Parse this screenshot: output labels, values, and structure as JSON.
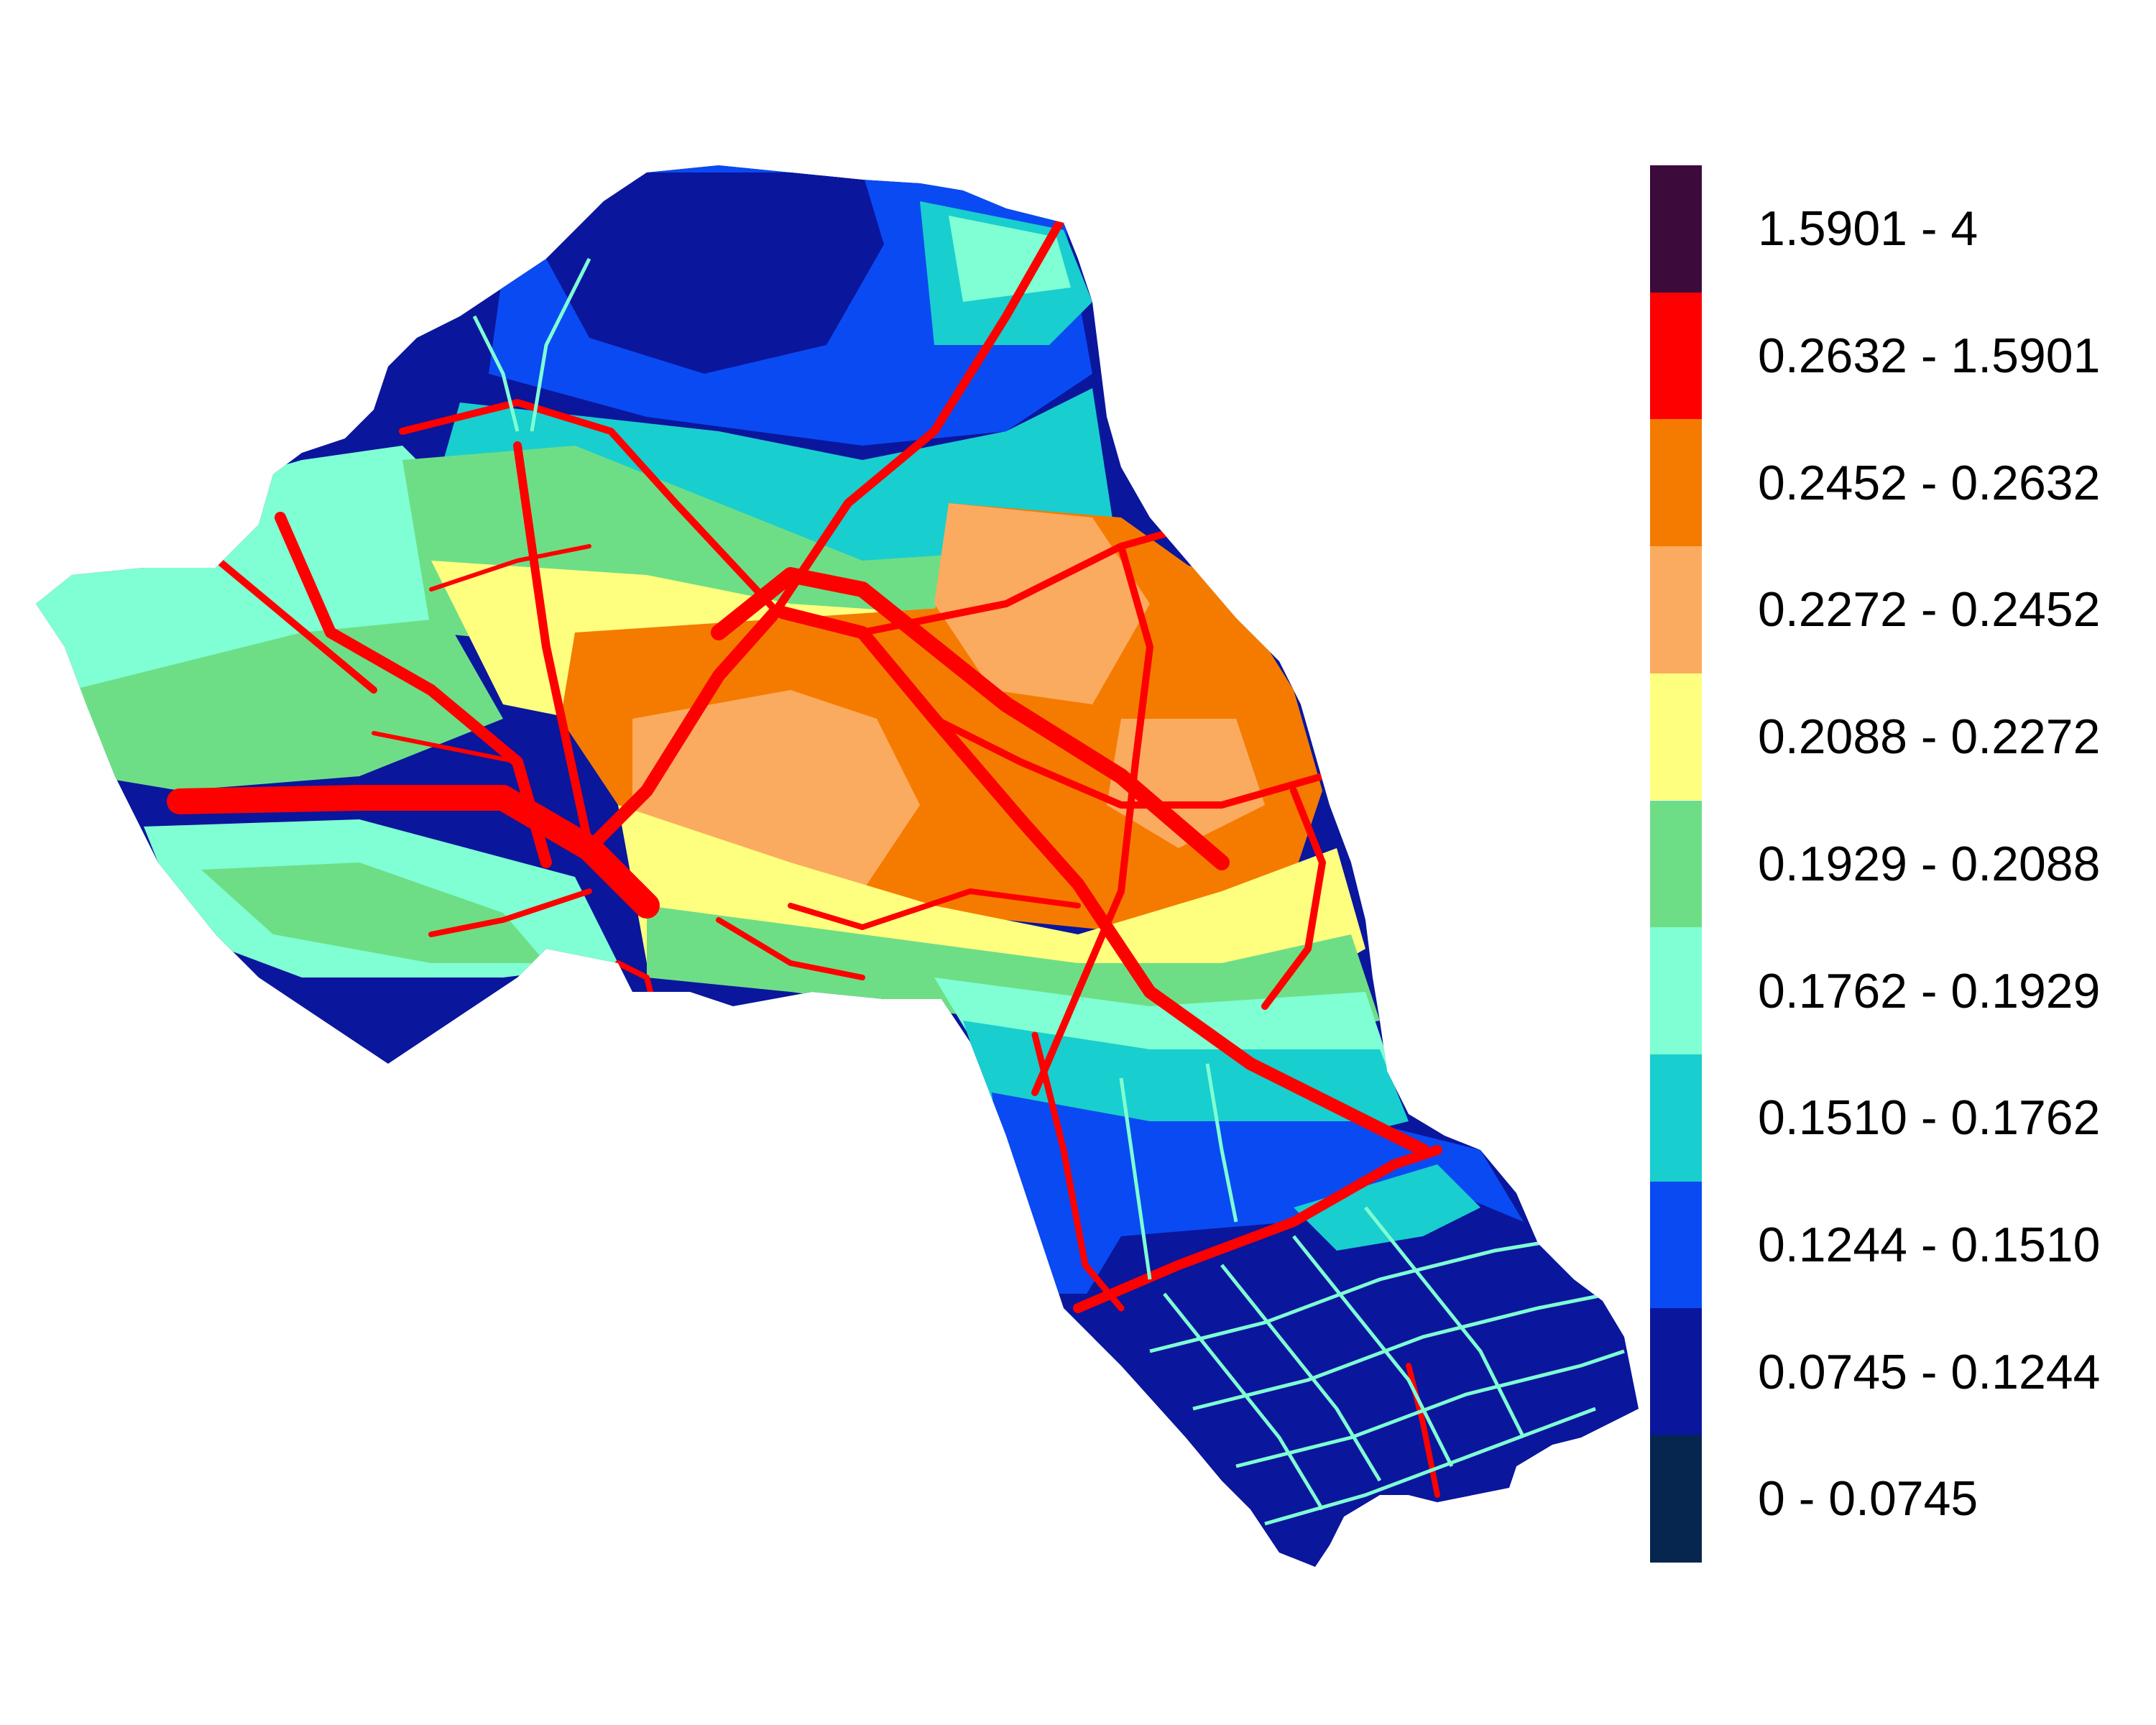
{
  "map": {
    "classes": [
      {
        "label": "1.5901 - 4",
        "color": "#3d0a3c"
      },
      {
        "label": "0.2632 - 1.5901",
        "color": "#ff0000"
      },
      {
        "label": "0.2452 - 0.2632",
        "color": "#f57b00"
      },
      {
        "label": "0.2272 - 0.2452",
        "color": "#fbab5f"
      },
      {
        "label": "0.2088 - 0.2272",
        "color": "#ffff7f"
      },
      {
        "label": "0.1929 - 0.2088",
        "color": "#6ede86"
      },
      {
        "label": "0.1762 - 0.1929",
        "color": "#7fffd3"
      },
      {
        "label": "0.1510 - 0.1762",
        "color": "#19cece"
      },
      {
        "label": "0.1244 - 0.1510",
        "color": "#0a4af2"
      },
      {
        "label": "0.0745 - 0.1244",
        "color": "#0a169c"
      },
      {
        "label": "0 - 0.0745",
        "color": "#06254f"
      }
    ]
  }
}
